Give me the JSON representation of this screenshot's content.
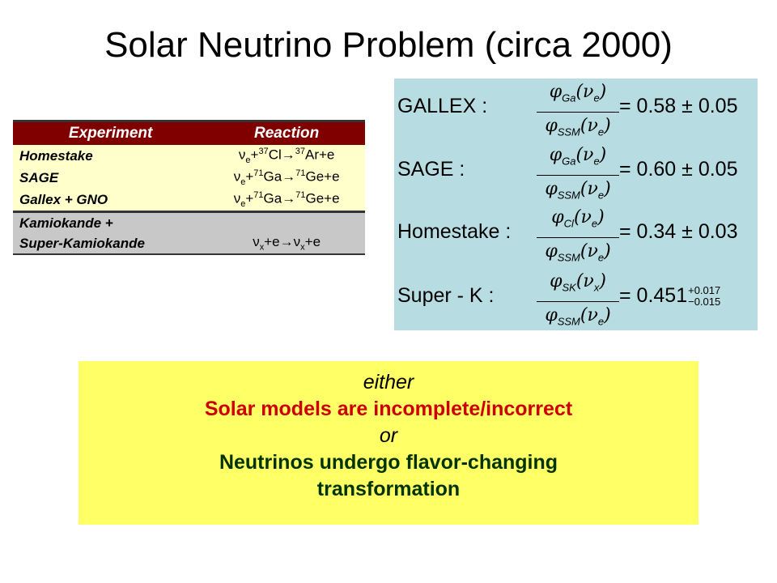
{
  "slide": {
    "title": "Solar Neutrino Problem (circa 2000)"
  },
  "table": {
    "headers": [
      "Experiment",
      "Reaction"
    ],
    "rows": [
      {
        "name": "Homestake",
        "reaction": "νe+37Cl→37Ar+e"
      },
      {
        "name": "SAGE",
        "reaction": "νe+71Ga→71Ge+e"
      },
      {
        "name": "Gallex + GNO",
        "reaction": "νe+71Ga→71Ge+e"
      },
      {
        "name_line1": "Kamiokande +",
        "name_line2": "Super-Kamiokande",
        "reaction": "νx+e→νx+e"
      }
    ]
  },
  "ratios": [
    {
      "label": "GALLEX :",
      "num_sub": "Ga",
      "num_arg": "νe",
      "den_sub": "SSM",
      "den_arg": "νe",
      "value": "= 0.58 ± 0.05"
    },
    {
      "label": "SAGE :",
      "num_sub": "Ga",
      "num_arg": "νe",
      "den_sub": "SSM",
      "den_arg": "νe",
      "value": "= 0.60 ± 0.05"
    },
    {
      "label": "Homestake :",
      "num_sub": "Cl",
      "num_arg": "νe",
      "den_sub": "SSM",
      "den_arg": "νe",
      "value": "= 0.34 ± 0.03"
    },
    {
      "label": "Super - K :",
      "num_sub": "SK",
      "num_arg": "νx",
      "den_sub": "SSM",
      "den_arg": "νe",
      "value": "= 0.451",
      "err_plus": "+0.017",
      "err_minus": "−0.015"
    }
  ],
  "conclusion": {
    "either": "either",
    "option1": "Solar models are incomplete/incorrect",
    "or": "or",
    "option2_line1": "Neutrinos undergo flavor-changing",
    "option2_line2": "transformation"
  },
  "colors": {
    "table_header": "#800000",
    "table_row_yellow": "#ffffcc",
    "table_row_gray": "#c8c8c8",
    "ratio_panel": "#b7dde2",
    "conclusion_bg": "#ffff66",
    "option1_color": "#cc0000",
    "option2_color": "#003300"
  }
}
